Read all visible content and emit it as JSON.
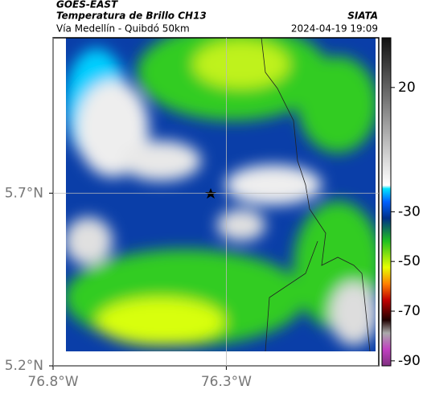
{
  "header": {
    "title": "GOES-EAST",
    "subtitle": "Temperatura de Brillo CH13",
    "route": "Vía Medellín - Quibdó 50km",
    "source": "SIATA",
    "timestamp": "2024-04-19 19:09"
  },
  "map": {
    "xlim": [
      -76.8,
      -75.86
    ],
    "ylim": [
      5.2,
      6.15
    ],
    "xticks": [
      {
        "value": -76.8,
        "label": "76.8°W"
      },
      {
        "value": -76.3,
        "label": "76.3°W"
      }
    ],
    "yticks": [
      {
        "value": 5.2,
        "label": "5.2°N"
      },
      {
        "value": 5.7,
        "label": "5.7°N"
      }
    ],
    "grid": true
  },
  "colorbar": {
    "lim": [
      -92,
      40
    ],
    "ticks": [
      20,
      -30,
      -50,
      -70,
      -90
    ]
  }
}
